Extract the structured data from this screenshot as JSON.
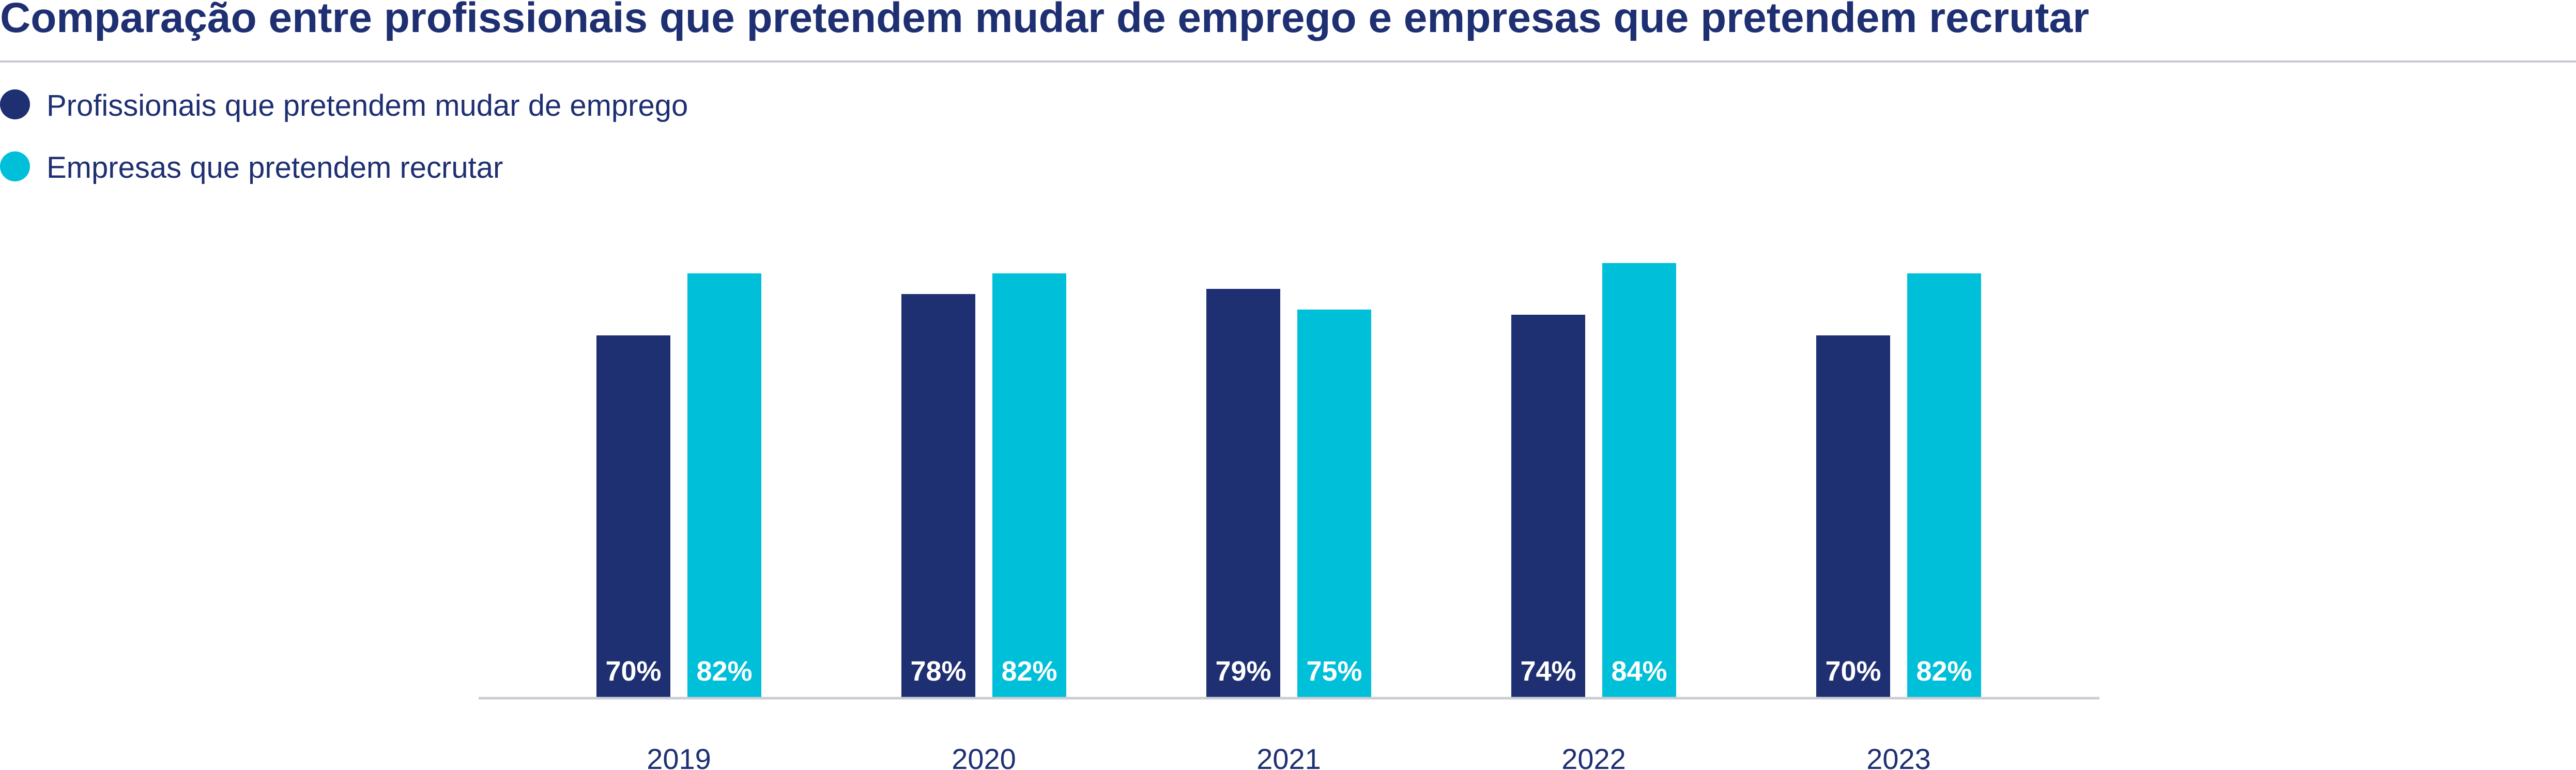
{
  "colors": {
    "primary": "#1e2f72",
    "secondary": "#00bfd8",
    "rule": "#c6cad6",
    "baseline": "#c9ccd4"
  },
  "chart_data": {
    "type": "bar",
    "title": "Comparação entre profissionais que pretendem mudar de emprego e empresas que pretendem recrutar",
    "xlabel": "",
    "ylabel": "",
    "ylim": [
      0,
      100
    ],
    "grid": false,
    "legend_position": "top-left",
    "categories": [
      "2019",
      "2020",
      "2021",
      "2022",
      "2023"
    ],
    "series": [
      {
        "name": "Profissionais que pretendem mudar de emprego",
        "values": [
          70,
          78,
          79,
          74,
          70
        ],
        "labels": [
          "70%",
          "78%",
          "79%",
          "74%",
          "70%"
        ],
        "color": "#1e2f72"
      },
      {
        "name": "Empresas que pretendem recrutar",
        "values": [
          82,
          82,
          75,
          84,
          82
        ],
        "labels": [
          "82%",
          "82%",
          "75%",
          "84%",
          "82%"
        ],
        "color": "#00bfd8"
      }
    ]
  }
}
